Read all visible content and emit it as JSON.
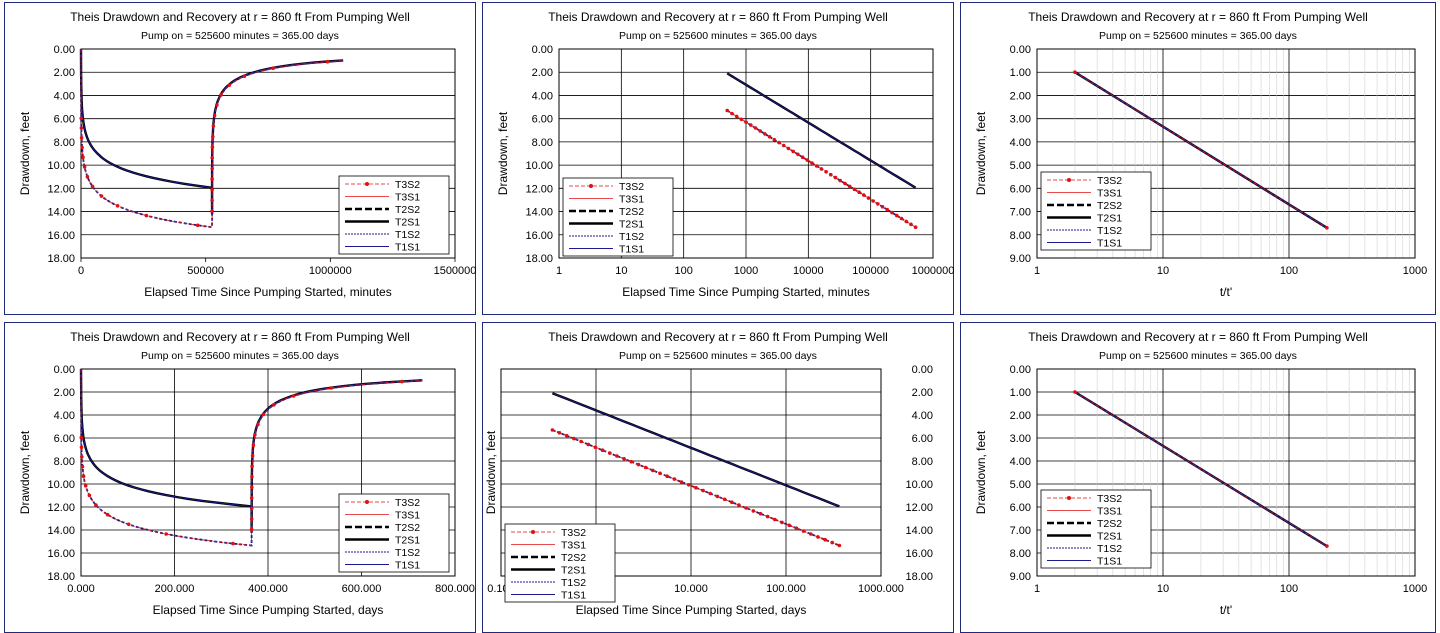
{
  "charts": [
    {
      "id": "p1",
      "title": "Theis Drawdown and Recovery at r = 860 ft From Pumping Well",
      "subtitle": "Pump on = 525600 minutes = 365.00 days",
      "xlabel": "Elapsed Time Since Pumping Started, minutes",
      "ylabel": "Drawdown, feet",
      "xscale": "linear",
      "xlim": [
        0,
        1500000
      ],
      "xticks": [
        0,
        500000,
        1000000,
        1500000
      ],
      "xticklabels": [
        "0",
        "500000",
        "1000000",
        "1500000"
      ],
      "yticks": [
        0,
        2,
        4,
        6,
        8,
        10,
        12,
        14,
        16,
        18
      ],
      "yticklabels": [
        "0.00",
        "2.00",
        "4.00",
        "6.00",
        "8.00",
        "10.00",
        "12.00",
        "14.00",
        "16.00",
        "18.00"
      ],
      "ylim": [
        0,
        18
      ],
      "yinverted": true,
      "gridx": false,
      "gridy": true,
      "legend": [
        "T3S2",
        "T3S1",
        "T2S2",
        "T2S1",
        "T1S2",
        "T1S1"
      ],
      "curves": "drawdown_recovery",
      "tscale": 1
    },
    {
      "id": "p2",
      "title": "Theis Drawdown and Recovery at r = 860 ft From Pumping Well",
      "subtitle": "Pump on = 525600 minutes = 365.00 days",
      "xlabel": "Elapsed Time Since Pumping Started, minutes",
      "ylabel": "Drawdown, feet",
      "xscale": "log",
      "xlim": [
        1,
        1000000
      ],
      "xticks": [
        1,
        10,
        100,
        1000,
        10000,
        100000,
        1000000
      ],
      "xticklabels": [
        "1",
        "10",
        "100",
        "1000",
        "10000",
        "100000",
        "1000000"
      ],
      "yticks": [
        0,
        2,
        4,
        6,
        8,
        10,
        12,
        14,
        16,
        18
      ],
      "yticklabels": [
        "0.00",
        "2.00",
        "4.00",
        "6.00",
        "8.00",
        "10.00",
        "12.00",
        "14.00",
        "16.00",
        "18.00"
      ],
      "ylim": [
        0,
        18
      ],
      "yinverted": true,
      "gridx": true,
      "gridy": true,
      "legend": [
        "T3S2",
        "T3S1",
        "T2S2",
        "T2S1",
        "T1S2",
        "T1S1"
      ],
      "curves": "drawdown_log",
      "tscale": 1
    },
    {
      "id": "p3",
      "title": "Theis Drawdown and Recovery at r = 860 ft From Pumping Well",
      "subtitle": "Pump on = 525600 minutes = 365.00 days",
      "xlabel": "t/t'",
      "ylabel": "Drawdown, feet",
      "xscale": "log",
      "xlim": [
        1,
        1000
      ],
      "xticks": [
        1,
        10,
        100,
        1000
      ],
      "xticklabels": [
        "1",
        "10",
        "100",
        "1000"
      ],
      "yticks": [
        0,
        1,
        2,
        3,
        4,
        5,
        6,
        7,
        8,
        9
      ],
      "yticklabels": [
        "0.00",
        "1.00",
        "2.00",
        "3.00",
        "4.00",
        "5.00",
        "6.00",
        "7.00",
        "8.00",
        "9.00"
      ],
      "ylim": [
        0,
        9
      ],
      "yinverted": true,
      "gridx": true,
      "gridy": true,
      "legend": [
        "T3S2",
        "T3S1",
        "T2S2",
        "T2S1",
        "T1S2",
        "T1S1"
      ],
      "curves": "residual",
      "tscale": 1
    },
    {
      "id": "p4",
      "title": "Theis Drawdown and Recovery at r = 860 ft From Pumping Well",
      "subtitle": "Pump on = 525600 minutes = 365.00 days",
      "xlabel": "Elapsed Time Since Pumping Started, days",
      "ylabel": "Drawdown, feet",
      "xscale": "linear",
      "xlim": [
        0,
        800
      ],
      "xticks": [
        0,
        200,
        400,
        600,
        800
      ],
      "xticklabels": [
        "0.000",
        "200.000",
        "400.000",
        "600.000",
        "800.000"
      ],
      "yticks": [
        0,
        2,
        4,
        6,
        8,
        10,
        12,
        14,
        16,
        18
      ],
      "yticklabels": [
        "0.00",
        "2.00",
        "4.00",
        "6.00",
        "8.00",
        "10.00",
        "12.00",
        "14.00",
        "16.00",
        "18.00"
      ],
      "ylim": [
        0,
        18
      ],
      "yinverted": true,
      "gridx": true,
      "gridy": true,
      "legend": [
        "T3S2",
        "T3S1",
        "T2S2",
        "T2S1",
        "T1S2",
        "T1S1"
      ],
      "curves": "drawdown_recovery",
      "tscale": 0.000694444
    },
    {
      "id": "p5",
      "title": "Theis Drawdown and Recovery at r = 860 ft From Pumping Well",
      "subtitle": "Pump on = 525600 minutes = 365.00 days",
      "xlabel": "Elapsed Time Since Pumping Started, days",
      "ylabel": "Drawdown, feet",
      "xscale": "log",
      "xlim": [
        0.1,
        1000
      ],
      "xticks": [
        0.1,
        1,
        10,
        100,
        1000
      ],
      "xticklabels": [
        "0.100",
        "1.000",
        "10.000",
        "100.000",
        "1000.000"
      ],
      "yticks": [
        0,
        2,
        4,
        6,
        8,
        10,
        12,
        14,
        16,
        18
      ],
      "yticklabels": [
        "0.00",
        "2.00",
        "4.00",
        "6.00",
        "8.00",
        "10.00",
        "12.00",
        "14.00",
        "16.00",
        "18.00"
      ],
      "ylim": [
        0,
        18
      ],
      "yinverted": true,
      "gridx": true,
      "gridy": true,
      "yaxis_side": "right",
      "legend": [
        "T3S2",
        "T3S1",
        "T2S2",
        "T2S1",
        "T1S2",
        "T1S1"
      ],
      "curves": "drawdown_log",
      "tscale": 0.000694444
    },
    {
      "id": "p6",
      "title": "Theis Drawdown and Recovery at r = 860 ft From Pumping Well",
      "subtitle": "Pump on = 525600 minutes = 365.00 days",
      "xlabel": "t/t'",
      "ylabel": "Drawdown, feet",
      "xscale": "log",
      "xlim": [
        1,
        1000
      ],
      "xticks": [
        1,
        10,
        100,
        1000
      ],
      "xticklabels": [
        "1",
        "10",
        "100",
        "1000"
      ],
      "yticks": [
        0,
        1,
        2,
        3,
        4,
        5,
        6,
        7,
        8,
        9
      ],
      "yticklabels": [
        "0.00",
        "1.00",
        "2.00",
        "3.00",
        "4.00",
        "5.00",
        "6.00",
        "7.00",
        "8.00",
        "9.00"
      ],
      "ylim": [
        0,
        9
      ],
      "yinverted": true,
      "gridx": true,
      "gridy": true,
      "legend": [
        "T3S2",
        "T3S1",
        "T2S2",
        "T2S1",
        "T1S2",
        "T1S1"
      ],
      "curves": "residual",
      "tscale": 1
    }
  ],
  "chart_data": [
    {
      "type": "line",
      "title": "Theis Drawdown and Recovery at r = 860 ft From Pumping Well",
      "subtitle": "Pump on = 525600 minutes = 365.00 days",
      "xlabel": "Elapsed Time Since Pumping Started, minutes",
      "ylabel": "Drawdown, feet",
      "xlim": [
        0,
        1500000
      ],
      "ylim": [
        18,
        0
      ],
      "series": [
        {
          "name": "T3S2",
          "x": [
            500,
            5000,
            50000,
            150000,
            300000,
            525600,
            526000,
            600000,
            800000,
            1051200
          ],
          "y": [
            5.3,
            8.8,
            12.3,
            13.9,
            14.8,
            15.35,
            11.5,
            3.8,
            1.8,
            1.0
          ]
        },
        {
          "name": "T3S1",
          "x": [
            500,
            5000,
            50000,
            150000,
            300000,
            525600,
            526000,
            600000,
            800000,
            1051200
          ],
          "y": [
            5.3,
            8.8,
            12.3,
            13.9,
            14.8,
            15.35,
            11.5,
            3.8,
            1.8,
            1.0
          ]
        },
        {
          "name": "T2S2",
          "x": [
            500,
            5000,
            50000,
            150000,
            300000,
            525600,
            526000,
            600000,
            800000,
            1051200
          ],
          "y": [
            2.1,
            5.5,
            8.9,
            10.5,
            11.4,
            11.95,
            8.5,
            3.5,
            1.8,
            1.0
          ]
        },
        {
          "name": "T2S1",
          "x": [
            500,
            5000,
            50000,
            150000,
            300000,
            525600,
            526000,
            600000,
            800000,
            1051200
          ],
          "y": [
            2.1,
            5.5,
            8.9,
            10.5,
            11.4,
            11.95,
            8.5,
            3.5,
            1.8,
            1.0
          ]
        },
        {
          "name": "T1S2",
          "x": [
            500,
            5000,
            50000,
            150000,
            300000,
            525600,
            526000,
            600000,
            800000,
            1051200
          ],
          "y": [
            2.1,
            5.5,
            8.9,
            10.5,
            11.4,
            11.95,
            8.5,
            3.5,
            1.8,
            1.0
          ]
        },
        {
          "name": "T1S1",
          "x": [
            500,
            5000,
            50000,
            150000,
            300000,
            525600,
            526000,
            600000,
            800000,
            1051200
          ],
          "y": [
            2.1,
            5.5,
            8.9,
            10.5,
            11.4,
            11.95,
            8.5,
            3.5,
            1.8,
            1.0
          ]
        }
      ]
    },
    {
      "type": "line",
      "title": "Theis Drawdown and Recovery at r = 860 ft From Pumping Well",
      "subtitle": "Pump on = 525600 minutes = 365.00 days",
      "xlabel": "Elapsed Time Since Pumping Started, minutes",
      "ylabel": "Drawdown, feet",
      "xscale": "log",
      "xlim": [
        1,
        1000000
      ],
      "ylim": [
        18,
        0
      ],
      "series": [
        {
          "name": "T3S2",
          "x": [
            500,
            525600
          ],
          "y": [
            5.3,
            15.35
          ]
        },
        {
          "name": "T2S1",
          "x": [
            500,
            525600
          ],
          "y": [
            2.1,
            11.95
          ]
        }
      ]
    },
    {
      "type": "line",
      "title": "Theis Drawdown and Recovery at r = 860 ft From Pumping Well",
      "subtitle": "Pump on = 525600 minutes = 365.00 days",
      "xlabel": "t/t'",
      "ylabel": "Drawdown, feet",
      "xscale": "log",
      "xlim": [
        1,
        1000
      ],
      "ylim": [
        9,
        0
      ],
      "series": [
        {
          "name": "T3S2",
          "x": [
            2,
            200
          ],
          "y": [
            1.0,
            7.7
          ]
        },
        {
          "name": "T1S1",
          "x": [
            2,
            200
          ],
          "y": [
            1.0,
            7.7
          ]
        }
      ]
    },
    {
      "type": "line",
      "title": "Theis Drawdown and Recovery at r = 860 ft From Pumping Well",
      "subtitle": "Pump on = 525600 minutes = 365.00 days",
      "xlabel": "Elapsed Time Since Pumping Started, days",
      "ylabel": "Drawdown, feet",
      "xlim": [
        0,
        800
      ],
      "ylim": [
        18,
        0
      ],
      "series": [
        {
          "name": "T3S2",
          "x": [
            0.35,
            3.5,
            35,
            100,
            200,
            365,
            366,
            420,
            550,
            730
          ],
          "y": [
            5.3,
            8.8,
            12.3,
            13.9,
            14.8,
            15.35,
            11.5,
            3.8,
            1.8,
            1.0
          ]
        },
        {
          "name": "T2S1",
          "x": [
            0.35,
            3.5,
            35,
            100,
            200,
            365,
            366,
            420,
            550,
            730
          ],
          "y": [
            2.1,
            5.5,
            8.9,
            10.5,
            11.4,
            11.95,
            8.5,
            3.5,
            1.8,
            1.0
          ]
        }
      ]
    },
    {
      "type": "line",
      "title": "Theis Drawdown and Recovery at r = 860 ft From Pumping Well",
      "subtitle": "Pump on = 525600 minutes = 365.00 days",
      "xlabel": "Elapsed Time Since Pumping Started, days",
      "ylabel": "Drawdown, feet",
      "xscale": "log",
      "xlim": [
        0.1,
        1000
      ],
      "ylim": [
        18,
        0
      ],
      "series": [
        {
          "name": "T3S2",
          "x": [
            0.35,
            365
          ],
          "y": [
            5.3,
            15.35
          ]
        },
        {
          "name": "T2S1",
          "x": [
            0.35,
            365
          ],
          "y": [
            2.1,
            11.95
          ]
        }
      ]
    },
    {
      "type": "line",
      "title": "Theis Drawdown and Recovery at r = 860 ft From Pumping Well",
      "subtitle": "Pump on = 525600 minutes = 365.00 days",
      "xlabel": "t/t'",
      "ylabel": "Drawdown, feet",
      "xscale": "log",
      "xlim": [
        1,
        1000
      ],
      "ylim": [
        9,
        0
      ],
      "series": [
        {
          "name": "T3S2",
          "x": [
            2,
            200
          ],
          "y": [
            1.0,
            7.7
          ]
        },
        {
          "name": "T1S1",
          "x": [
            2,
            200
          ],
          "y": [
            1.0,
            7.7
          ]
        }
      ]
    }
  ]
}
